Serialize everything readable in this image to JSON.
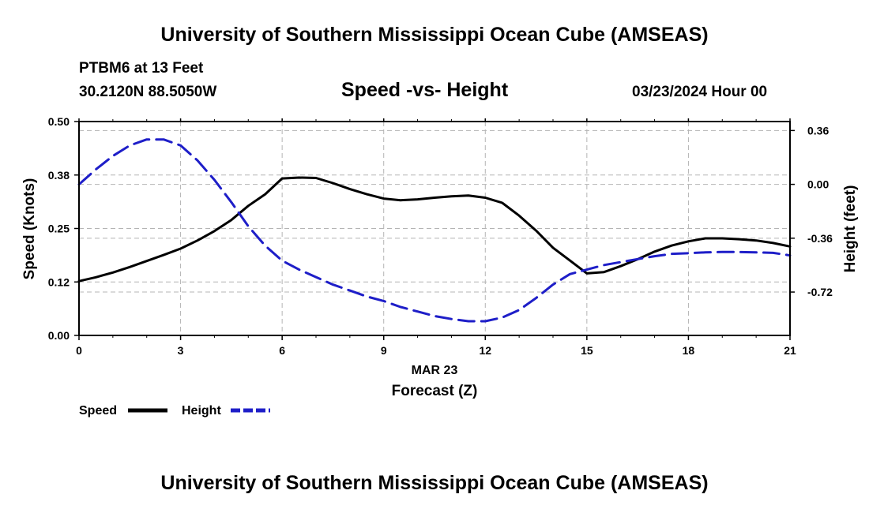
{
  "header": {
    "title": "University of Southern Mississippi Ocean Cube (AMSEAS)",
    "station": "PTBM6 at 13 Feet",
    "coords": "30.2120N  88.5050W",
    "subtitle": "Speed -vs- Height",
    "datetime": "03/23/2024 Hour 00"
  },
  "footer": {
    "title": "University of Southern Mississippi Ocean Cube (AMSEAS)"
  },
  "chart_data": {
    "type": "line",
    "title": "Speed -vs- Height",
    "xlabel": "Forecast (Z)",
    "xlabel_date": "MAR 23",
    "ylabel": "Speed (Knots)",
    "y2label": "Height (feet)",
    "xlim": [
      0,
      21
    ],
    "ylim": [
      0,
      0.5
    ],
    "y2lim": [
      -1.01,
      0.42
    ],
    "grid": true,
    "x_ticks": [
      0,
      3,
      6,
      9,
      12,
      15,
      18,
      21
    ],
    "y_ticks": [
      0.0,
      0.125,
      0.25,
      0.375,
      0.5
    ],
    "y_tick_labels": [
      "0.00",
      "0.12",
      "0.25",
      "0.38",
      "0.50"
    ],
    "y2_ticks": [
      0.36,
      0.0,
      -0.36,
      -0.72
    ],
    "y2_tick_labels": [
      "0.36",
      "0.00",
      "-0.36",
      "-0.72"
    ],
    "legend_position": "bottom-left",
    "series": [
      {
        "name": "Speed",
        "axis": "left",
        "color": "#000000",
        "dash": "solid",
        "x": [
          0,
          0.5,
          1,
          1.5,
          2,
          2.5,
          3,
          3.5,
          4,
          4.5,
          5,
          5.5,
          6,
          6.5,
          7,
          7.5,
          8,
          8.5,
          9,
          9.5,
          10,
          10.5,
          11,
          11.5,
          12,
          12.5,
          13,
          13.5,
          14,
          14.5,
          15,
          15.5,
          16,
          16.5,
          17,
          17.5,
          18,
          18.5,
          19,
          19.5,
          20,
          20.5,
          21
        ],
        "values": [
          0.127,
          0.136,
          0.147,
          0.16,
          0.174,
          0.188,
          0.203,
          0.222,
          0.244,
          0.27,
          0.303,
          0.33,
          0.367,
          0.369,
          0.368,
          0.356,
          0.342,
          0.33,
          0.32,
          0.316,
          0.318,
          0.322,
          0.325,
          0.327,
          0.322,
          0.31,
          0.28,
          0.245,
          0.205,
          0.175,
          0.145,
          0.148,
          0.162,
          0.178,
          0.196,
          0.21,
          0.22,
          0.227,
          0.227,
          0.225,
          0.222,
          0.216,
          0.208
        ]
      },
      {
        "name": "Height",
        "axis": "right",
        "color": "#1e1ec8",
        "dash": "dashed",
        "x": [
          0,
          0.5,
          1,
          1.5,
          2,
          2.5,
          3,
          3.5,
          4,
          4.5,
          5,
          5.5,
          6,
          6.5,
          7,
          7.5,
          8,
          8.5,
          9,
          9.5,
          10,
          10.5,
          11,
          11.5,
          12,
          12.5,
          13,
          13.5,
          14,
          14.5,
          15,
          15.5,
          16,
          16.5,
          17,
          17.5,
          18,
          18.5,
          19,
          19.5,
          20,
          20.5,
          21
        ],
        "values": [
          0.0,
          0.1,
          0.19,
          0.26,
          0.3,
          0.3,
          0.26,
          0.16,
          0.03,
          -0.12,
          -0.28,
          -0.41,
          -0.51,
          -0.57,
          -0.62,
          -0.67,
          -0.71,
          -0.75,
          -0.78,
          -0.82,
          -0.85,
          -0.88,
          -0.9,
          -0.915,
          -0.915,
          -0.89,
          -0.84,
          -0.76,
          -0.67,
          -0.6,
          -0.57,
          -0.54,
          -0.52,
          -0.5,
          -0.48,
          -0.465,
          -0.46,
          -0.455,
          -0.452,
          -0.452,
          -0.455,
          -0.458,
          -0.475
        ]
      }
    ]
  }
}
